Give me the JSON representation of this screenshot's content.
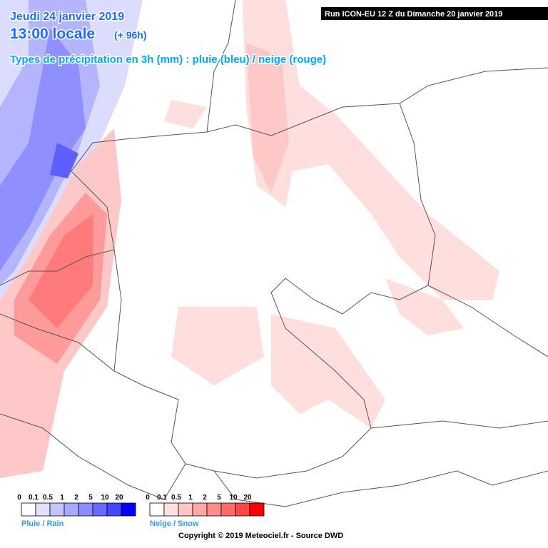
{
  "header": {
    "date": "Jeudi 24 janvier 2019",
    "time": "13:00 locale",
    "lead": "(+ 96h)",
    "subtitle": "Types de précipitation en 3h (mm) : pluie (bleu) / neige (rouge)",
    "run": "Run ICON-EU 12 Z du Dimanche 20 janvier 2019"
  },
  "legend": {
    "rain": {
      "ticks": [
        "0",
        "0.1",
        "0.5",
        "1",
        "2",
        "5",
        "10",
        "20"
      ],
      "label": "Pluie / Rain"
    },
    "snow": {
      "ticks": [
        "0",
        "0.1",
        "0.5",
        "1",
        "2",
        "5",
        "10",
        "20"
      ],
      "label": "Neige / Snow"
    }
  },
  "footer": {
    "copyright": "Copyright © 2019 Meteociel.fr - Source DWD"
  }
}
